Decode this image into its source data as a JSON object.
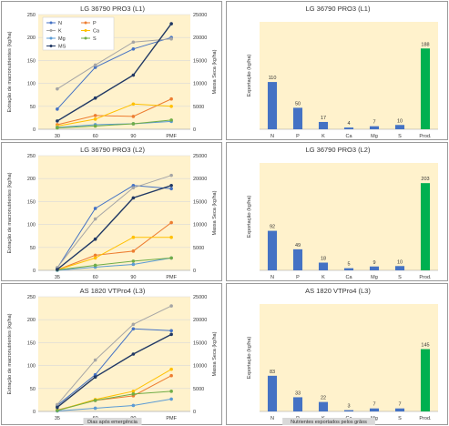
{
  "chart_data": [
    {
      "type": "line",
      "title": "LG 36790 PRO3 (L1)",
      "ylabel": "Extração de macronutrientes (kg/ha)",
      "ylabel2": "Massa Seca (kg/ha)",
      "x": [
        "30",
        "60",
        "90",
        "PMF"
      ],
      "ylim": [
        0,
        250
      ],
      "yticks": [
        "0",
        "50",
        "100",
        "150",
        "200",
        "250"
      ],
      "y2lim": [
        0,
        25000
      ],
      "y2ticks": [
        "0",
        "5000",
        "10000",
        "15000",
        "20000",
        "25000"
      ],
      "legend": [
        "N",
        "P",
        "K",
        "Ca",
        "Mg",
        "S",
        "MS"
      ],
      "series": [
        {
          "name": "N",
          "color": "#4472c4",
          "axis": "left",
          "values": [
            44,
            135,
            175,
            200
          ]
        },
        {
          "name": "P",
          "color": "#ed7d31",
          "axis": "left",
          "values": [
            10,
            30,
            28,
            66
          ]
        },
        {
          "name": "K",
          "color": "#a5a5a5",
          "axis": "left",
          "values": [
            88,
            140,
            190,
            197
          ]
        },
        {
          "name": "Ca",
          "color": "#ffc000",
          "axis": "left",
          "values": [
            7,
            22,
            55,
            50
          ]
        },
        {
          "name": "Mg",
          "color": "#5b9bd5",
          "axis": "left",
          "values": [
            4,
            10,
            12,
            17
          ]
        },
        {
          "name": "S",
          "color": "#70ad47",
          "axis": "left",
          "values": [
            3,
            7,
            12,
            20
          ]
        },
        {
          "name": "MS",
          "color": "#203864",
          "axis": "right",
          "values": [
            1800,
            6800,
            11800,
            23000
          ]
        }
      ]
    },
    {
      "type": "line",
      "title": "LG 36790 PRO3 (L2)",
      "ylabel": "Extração de macronutrientes (kg/ha)",
      "ylabel2": "Massa Seca (kg/ha)",
      "x": [
        "35",
        "60",
        "90",
        "PMF"
      ],
      "ylim": [
        0,
        250
      ],
      "yticks": [
        "0",
        "50",
        "100",
        "150",
        "200",
        "250"
      ],
      "y2lim": [
        0,
        25000
      ],
      "y2ticks": [
        "0",
        "5000",
        "10000",
        "15000",
        "20000",
        "25000"
      ],
      "series": [
        {
          "name": "N",
          "color": "#4472c4",
          "axis": "left",
          "values": [
            5,
            135,
            185,
            178
          ]
        },
        {
          "name": "P",
          "color": "#ed7d31",
          "axis": "left",
          "values": [
            1,
            33,
            42,
            104
          ]
        },
        {
          "name": "K",
          "color": "#a5a5a5",
          "axis": "left",
          "values": [
            6,
            112,
            180,
            207
          ]
        },
        {
          "name": "Ca",
          "color": "#ffc000",
          "axis": "left",
          "values": [
            1,
            27,
            72,
            72
          ]
        },
        {
          "name": "Mg",
          "color": "#5b9bd5",
          "axis": "left",
          "values": [
            0,
            7,
            13,
            27
          ]
        },
        {
          "name": "S",
          "color": "#70ad47",
          "axis": "left",
          "values": [
            1,
            11,
            20,
            27
          ]
        },
        {
          "name": "MS",
          "color": "#203864",
          "axis": "right",
          "values": [
            200,
            6800,
            15800,
            18500
          ]
        }
      ]
    },
    {
      "type": "line",
      "title": "AS 1820 VTPro4 (L3)",
      "ylabel": "Extração de macronutrientes (kg/ha)",
      "ylabel2": "Massa Seca (kg/ha)",
      "xlabel": "Dias após emergência",
      "x": [
        "35",
        "60",
        "90",
        "PMF"
      ],
      "ylim": [
        0,
        250
      ],
      "yticks": [
        "0",
        "50",
        "100",
        "150",
        "200",
        "250"
      ],
      "y2lim": [
        0,
        25000
      ],
      "y2ticks": [
        "0",
        "5000",
        "10000",
        "15000",
        "20000",
        "25000"
      ],
      "series": [
        {
          "name": "N",
          "color": "#4472c4",
          "axis": "left",
          "values": [
            13,
            80,
            180,
            176
          ]
        },
        {
          "name": "P",
          "color": "#ed7d31",
          "axis": "left",
          "values": [
            3,
            24,
            34,
            78
          ]
        },
        {
          "name": "K",
          "color": "#a5a5a5",
          "axis": "left",
          "values": [
            15,
            112,
            190,
            230
          ]
        },
        {
          "name": "Ca",
          "color": "#ffc000",
          "axis": "left",
          "values": [
            2,
            26,
            44,
            92
          ]
        },
        {
          "name": "Mg",
          "color": "#5b9bd5",
          "axis": "left",
          "values": [
            1,
            7,
            13,
            27
          ]
        },
        {
          "name": "S",
          "color": "#70ad47",
          "axis": "left",
          "values": [
            2,
            24,
            38,
            44
          ]
        },
        {
          "name": "MS",
          "color": "#203864",
          "axis": "right",
          "values": [
            900,
            7500,
            12500,
            16800
          ]
        }
      ]
    },
    {
      "type": "bar",
      "title": "LG 36790 PRO3 (L1)",
      "ylabel": "Exportação (kg/ha)",
      "categories": [
        "N",
        "P",
        "K",
        "Ca",
        "Mg",
        "S",
        "Prod."
      ],
      "values": [
        110,
        50,
        17,
        4,
        7,
        10,
        188
      ],
      "colors": [
        "#4472c4",
        "#4472c4",
        "#4472c4",
        "#4472c4",
        "#4472c4",
        "#4472c4",
        "#00b050"
      ],
      "ylim": [
        0,
        250
      ]
    },
    {
      "type": "bar",
      "title": "LG 36790 PRO3 (L2)",
      "ylabel": "Exportação (kg/ha)",
      "categories": [
        "N",
        "P",
        "K",
        "Ca",
        "Mg",
        "S",
        "Prod."
      ],
      "values": [
        92,
        49,
        18,
        5,
        9,
        10,
        203
      ],
      "colors": [
        "#4472c4",
        "#4472c4",
        "#4472c4",
        "#4472c4",
        "#4472c4",
        "#4472c4",
        "#00b050"
      ],
      "ylim": [
        0,
        250
      ]
    },
    {
      "type": "bar",
      "title": "AS 1820 VTPro4 (L3)",
      "ylabel": "Exportação (kg/ha)",
      "xlabel": "Nutrientes exportados pelos grãos",
      "categories": [
        "N",
        "P",
        "K",
        "Ca",
        "Mg",
        "S",
        "Prod."
      ],
      "values": [
        83,
        33,
        22,
        3,
        7,
        7,
        145
      ],
      "colors": [
        "#4472c4",
        "#4472c4",
        "#4472c4",
        "#4472c4",
        "#4472c4",
        "#4472c4",
        "#00b050"
      ],
      "ylim": [
        0,
        250
      ]
    }
  ]
}
